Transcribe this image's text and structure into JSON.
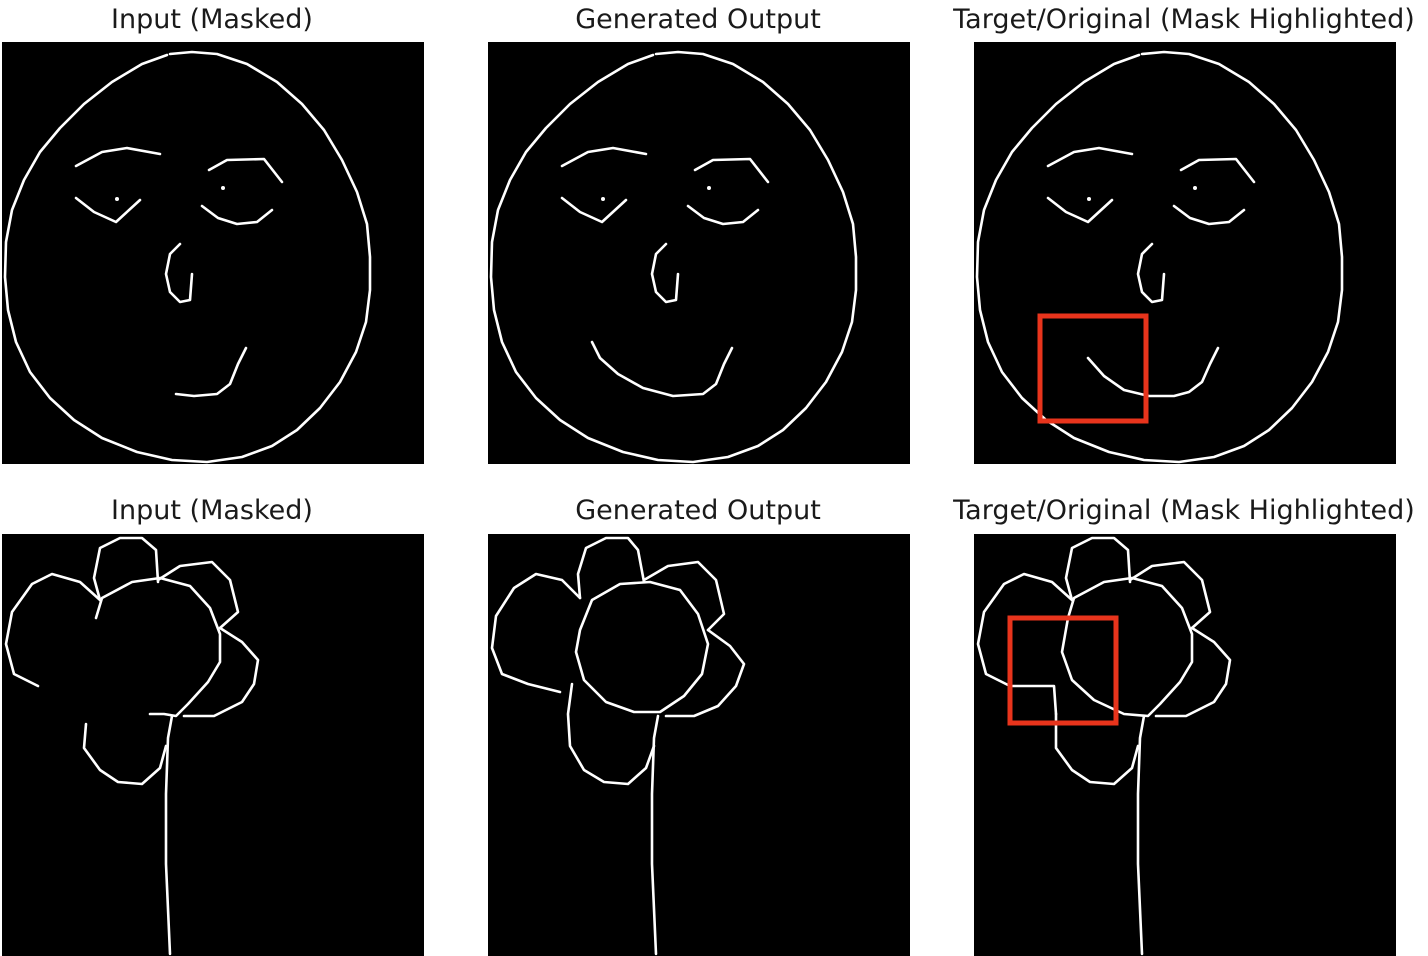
{
  "rows": [
    {
      "subject": "face",
      "panels": [
        {
          "title": "Input (Masked)"
        },
        {
          "title": "Generated Output"
        },
        {
          "title": "Target/Original (Mask Highlighted)"
        }
      ]
    },
    {
      "subject": "flower",
      "panels": [
        {
          "title": "Input (Masked)"
        },
        {
          "title": "Generated Output"
        },
        {
          "title": "Target/Original (Mask Highlighted)"
        }
      ]
    }
  ],
  "colors": {
    "background": "#000000",
    "stroke": "#ffffff",
    "mask_highlight": "#e8341c"
  }
}
